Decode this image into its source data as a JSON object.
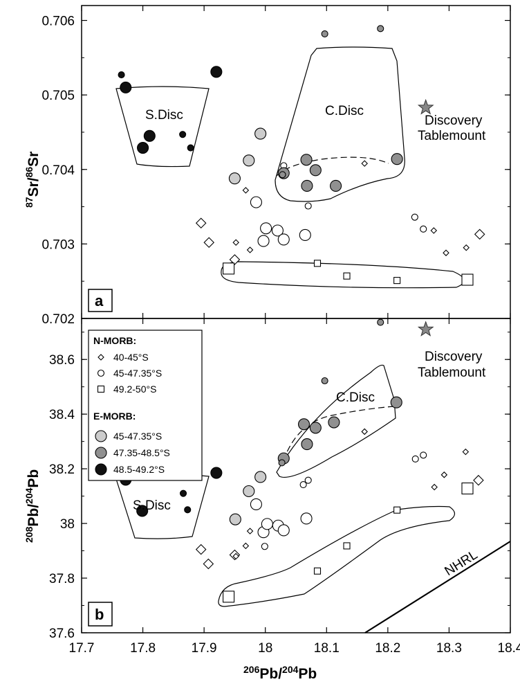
{
  "chart_data": [
    {
      "panel": "a",
      "type": "scatter",
      "ylabel": {
        "sup1": "87",
        "base1": "Sr/",
        "sup2": "86",
        "base2": "Sr"
      },
      "xlim": [
        17.7,
        18.4
      ],
      "ylim": [
        0.702,
        0.7062
      ],
      "yticks": [
        "0.702",
        "0.703",
        "0.704",
        "0.705",
        "0.706"
      ],
      "annotations": {
        "sdisc": "S.Disc",
        "cdisc": "C.Disc",
        "tablemount_1": "Discovery",
        "tablemount_2": "Tablemount"
      },
      "star": {
        "x": 18.28,
        "y": 0.70483
      },
      "series": [
        {
          "name": "40-45°S",
          "marker": "diamond",
          "points": [
            {
              "x": 17.895,
              "y": 0.70328,
              "s": "L"
            },
            {
              "x": 17.908,
              "y": 0.70302,
              "s": "L"
            },
            {
              "x": 17.95,
              "y": 0.70279,
              "s": "L"
            },
            {
              "x": 17.952,
              "y": 0.70302,
              "s": "S"
            },
            {
              "x": 17.968,
              "y": 0.70372,
              "s": "S"
            },
            {
              "x": 17.975,
              "y": 0.70292,
              "s": "S"
            },
            {
              "x": 18.162,
              "y": 0.70408,
              "s": "S"
            },
            {
              "x": 18.275,
              "y": 0.70318,
              "s": "S"
            },
            {
              "x": 18.295,
              "y": 0.70288,
              "s": "S"
            },
            {
              "x": 18.328,
              "y": 0.70295,
              "s": "S"
            },
            {
              "x": 18.35,
              "y": 0.70313,
              "s": "L"
            }
          ]
        },
        {
          "name": "45-47.35°S",
          "marker": "circle",
          "fill": "#ffffff",
          "points": [
            {
              "x": 17.985,
              "y": 0.70356,
              "s": "L"
            },
            {
              "x": 17.997,
              "y": 0.70304,
              "s": "L"
            },
            {
              "x": 18.001,
              "y": 0.70321,
              "s": "L"
            },
            {
              "x": 18.02,
              "y": 0.70318,
              "s": "L"
            },
            {
              "x": 18.03,
              "y": 0.70306,
              "s": "L"
            },
            {
              "x": 18.065,
              "y": 0.70312,
              "s": "L"
            },
            {
              "x": 18.03,
              "y": 0.70405,
              "s": "S"
            },
            {
              "x": 18.07,
              "y": 0.70351,
              "s": "S"
            },
            {
              "x": 18.244,
              "y": 0.70336,
              "s": "S"
            },
            {
              "x": 18.258,
              "y": 0.7032,
              "s": "S"
            }
          ]
        },
        {
          "name": "49.2-50°S",
          "marker": "square",
          "points": [
            {
              "x": 17.94,
              "y": 0.70267,
              "s": "L"
            },
            {
              "x": 18.085,
              "y": 0.70274,
              "s": "S"
            },
            {
              "x": 18.133,
              "y": 0.70257,
              "s": "S"
            },
            {
              "x": 18.215,
              "y": 0.70251,
              "s": "S"
            },
            {
              "x": 18.33,
              "y": 0.70252,
              "s": "L"
            }
          ]
        },
        {
          "name": "45-47.35°S",
          "marker": "circle",
          "fill": "#cccccc",
          "points": [
            {
              "x": 17.95,
              "y": 0.70388,
              "s": "L"
            },
            {
              "x": 17.973,
              "y": 0.70412,
              "s": "L"
            },
            {
              "x": 17.992,
              "y": 0.70448,
              "s": "L"
            }
          ]
        },
        {
          "name": "47.35-48.5°S",
          "marker": "circle",
          "fill": "#909090",
          "points": [
            {
              "x": 18.03,
              "y": 0.70395,
              "s": "L"
            },
            {
              "x": 18.067,
              "y": 0.70413,
              "s": "L"
            },
            {
              "x": 18.068,
              "y": 0.70378,
              "s": "L"
            },
            {
              "x": 18.082,
              "y": 0.70399,
              "s": "L"
            },
            {
              "x": 18.115,
              "y": 0.70378,
              "s": "L"
            },
            {
              "x": 18.215,
              "y": 0.70414,
              "s": "L"
            },
            {
              "x": 18.097,
              "y": 0.70582,
              "s": "S"
            },
            {
              "x": 18.188,
              "y": 0.70589,
              "s": "S"
            },
            {
              "x": 18.028,
              "y": 0.70393,
              "s": "S"
            }
          ]
        },
        {
          "name": "48.5-49.2°S",
          "marker": "circle",
          "fill": "#111111",
          "points": [
            {
              "x": 17.765,
              "y": 0.70527,
              "s": "S"
            },
            {
              "x": 17.772,
              "y": 0.7051,
              "s": "L"
            },
            {
              "x": 17.811,
              "y": 0.70445,
              "s": "L"
            },
            {
              "x": 17.8,
              "y": 0.70429,
              "s": "L"
            },
            {
              "x": 17.865,
              "y": 0.70447,
              "s": "S"
            },
            {
              "x": 17.878,
              "y": 0.70429,
              "s": "S"
            },
            {
              "x": 17.92,
              "y": 0.70531,
              "s": "L"
            }
          ]
        }
      ]
    },
    {
      "panel": "b",
      "type": "scatter",
      "ylabel": {
        "sup1": "208",
        "base1": "Pb/",
        "sup2": "204",
        "base2": "Pb"
      },
      "xlabel": {
        "sup1": "206",
        "base1": "Pb/",
        "sup2": "204",
        "base2": "Pb"
      },
      "xlim": [
        17.7,
        18.4
      ],
      "ylim": [
        37.6,
        38.75
      ],
      "xticks": [
        "17.7",
        "17.8",
        "17.9",
        "18",
        "18.1",
        "18.2",
        "18.3",
        "18.4"
      ],
      "yticks": [
        "37.6",
        "37.8",
        "38",
        "38.2",
        "38.4",
        "38.6"
      ],
      "annotations": {
        "sdisc": "S.Disc",
        "cdisc": "C.Disc",
        "nhrl": "NHRL",
        "tablemount_1": "Discovery",
        "tablemount_2": "Tablemount"
      },
      "star": {
        "x": 18.28,
        "y": 38.71
      },
      "series": [
        {
          "name": "40-45°S",
          "marker": "diamond",
          "points": [
            {
              "x": 17.895,
              "y": 37.905,
              "s": "L"
            },
            {
              "x": 17.907,
              "y": 37.852,
              "s": "L"
            },
            {
              "x": 17.95,
              "y": 37.885,
              "s": "L"
            },
            {
              "x": 17.952,
              "y": 37.88,
              "s": "S"
            },
            {
              "x": 17.975,
              "y": 37.972,
              "s": "S"
            },
            {
              "x": 17.968,
              "y": 37.918,
              "s": "S"
            },
            {
              "x": 18.162,
              "y": 38.336,
              "s": "S"
            },
            {
              "x": 18.276,
              "y": 38.133,
              "s": "S"
            },
            {
              "x": 18.292,
              "y": 38.178,
              "s": "S"
            },
            {
              "x": 18.327,
              "y": 38.262,
              "s": "S"
            },
            {
              "x": 18.348,
              "y": 38.158,
              "s": "L"
            }
          ]
        },
        {
          "name": "45-47.35°S",
          "marker": "circle",
          "fill": "#ffffff",
          "points": [
            {
              "x": 17.985,
              "y": 38.07,
              "s": "L"
            },
            {
              "x": 17.997,
              "y": 37.968,
              "s": "L"
            },
            {
              "x": 18.003,
              "y": 37.998,
              "s": "L"
            },
            {
              "x": 18.021,
              "y": 37.992,
              "s": "L"
            },
            {
              "x": 18.03,
              "y": 37.975,
              "s": "L"
            },
            {
              "x": 18.067,
              "y": 38.018,
              "s": "L"
            },
            {
              "x": 17.999,
              "y": 37.916,
              "s": "S"
            },
            {
              "x": 18.062,
              "y": 38.142,
              "s": "S"
            },
            {
              "x": 18.07,
              "y": 38.158,
              "s": "S"
            },
            {
              "x": 18.245,
              "y": 38.236,
              "s": "S"
            },
            {
              "x": 18.258,
              "y": 38.25,
              "s": "S"
            }
          ]
        },
        {
          "name": "49.2-50°S",
          "marker": "square",
          "points": [
            {
              "x": 17.94,
              "y": 37.732,
              "s": "L"
            },
            {
              "x": 18.085,
              "y": 37.826,
              "s": "S"
            },
            {
              "x": 18.133,
              "y": 37.918,
              "s": "S"
            },
            {
              "x": 18.215,
              "y": 38.049,
              "s": "S"
            },
            {
              "x": 18.33,
              "y": 38.128,
              "s": "L"
            }
          ]
        },
        {
          "name": "45-47.35°S",
          "marker": "circle",
          "fill": "#cccccc",
          "points": [
            {
              "x": 17.951,
              "y": 38.015,
              "s": "L"
            },
            {
              "x": 17.973,
              "y": 38.118,
              "s": "L"
            },
            {
              "x": 17.992,
              "y": 38.17,
              "s": "L"
            }
          ]
        },
        {
          "name": "47.35-48.5°S",
          "marker": "circle",
          "fill": "#909090",
          "points": [
            {
              "x": 18.03,
              "y": 38.238,
              "s": "L"
            },
            {
              "x": 18.063,
              "y": 38.363,
              "s": "L"
            },
            {
              "x": 18.068,
              "y": 38.29,
              "s": "L"
            },
            {
              "x": 18.082,
              "y": 38.35,
              "s": "L"
            },
            {
              "x": 18.112,
              "y": 38.37,
              "s": "L"
            },
            {
              "x": 18.214,
              "y": 38.443,
              "s": "L"
            },
            {
              "x": 18.097,
              "y": 38.522,
              "s": "S"
            },
            {
              "x": 18.188,
              "y": 38.736,
              "s": "S"
            },
            {
              "x": 18.027,
              "y": 38.222,
              "s": "S"
            }
          ]
        },
        {
          "name": "48.5-49.2°S",
          "marker": "circle",
          "fill": "#111111",
          "points": [
            {
              "x": 17.765,
              "y": 38.172,
              "s": "S"
            },
            {
              "x": 17.772,
              "y": 38.16,
              "s": "L"
            },
            {
              "x": 17.811,
              "y": 38.182,
              "s": "L"
            },
            {
              "x": 17.799,
              "y": 38.046,
              "s": "L"
            },
            {
              "x": 17.866,
              "y": 38.11,
              "s": "S"
            },
            {
              "x": 17.873,
              "y": 38.05,
              "s": "S"
            },
            {
              "x": 17.92,
              "y": 38.185,
              "s": "L"
            }
          ]
        }
      ]
    }
  ],
  "legend": {
    "nmorb_title": "N-MORB:",
    "emorb_title": "E-MORB:",
    "items": [
      {
        "label": "40-45°S",
        "marker": "diamond",
        "fill": "#ffffff"
      },
      {
        "label": "45-47.35°S",
        "marker": "circle",
        "fill": "#ffffff"
      },
      {
        "label": "49.2-50°S",
        "marker": "square",
        "fill": "#ffffff"
      },
      {
        "label": "45-47.35°S",
        "marker": "circle",
        "fill": "#cccccc"
      },
      {
        "label": "47.35-48.5°S",
        "marker": "circle",
        "fill": "#909090"
      },
      {
        "label": "48.5-49.2°S",
        "marker": "circle",
        "fill": "#111111"
      }
    ]
  }
}
